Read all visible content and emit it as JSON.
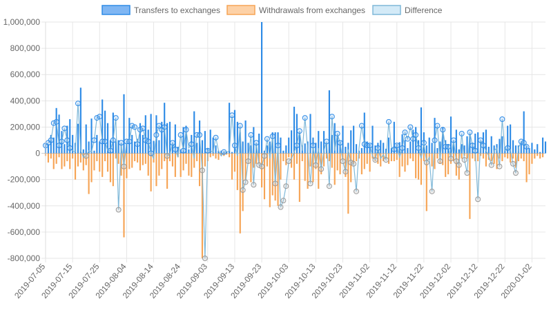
{
  "chart_data": {
    "type": "bar",
    "title": "",
    "xlabel": "",
    "ylabel": "",
    "ylim": [
      -800000,
      1000000
    ],
    "y_ticks": [
      -800000,
      -600000,
      -400000,
      -200000,
      0,
      200000,
      400000,
      600000,
      800000,
      1000000
    ],
    "y_tick_labels": [
      "-800,000",
      "-600,000",
      "-400,000",
      "-200,000",
      "0",
      "200,000",
      "400,000",
      "600,000",
      "800,000",
      "1,000,000"
    ],
    "x_tick_labels": [
      "2019-07-05",
      "2019-07-15",
      "2019-07-25",
      "2019-08-04",
      "2019-08-14",
      "2019-08-24",
      "2019-09-03",
      "2019-09-13",
      "2019-09-23",
      "2019-10-03",
      "2019-10-13",
      "2019-10-23",
      "2019-11-02",
      "2019-11-12",
      "2019-11-22",
      "2019-12-02",
      "2019-12-12",
      "2019-12-22",
      "2020-01-02"
    ],
    "grid": true,
    "legend_position": "top",
    "colors": {
      "transfers_fill": "#7fb6f3",
      "transfers_stroke": "#2e8be6",
      "withdrawals_fill": "#fdd1a6",
      "withdrawals_stroke": "#f6a455",
      "difference_fill": "#d3eaf7",
      "difference_stroke": "#7fb8d8",
      "grid": "#e6e6e6"
    },
    "series": [
      {
        "name": "Transfers to exchanges",
        "kind": "bar",
        "values": [
          80000,
          70000,
          140000,
          120000,
          345000,
          295000,
          170000,
          70000,
          210000,
          260000,
          140000,
          80000,
          225000,
          500000,
          30000,
          220000,
          90000,
          265000,
          20000,
          140000,
          90000,
          410000,
          325000,
          230000,
          100000,
          310000,
          90000,
          100000,
          80000,
          450000,
          70000,
          270000,
          140000,
          90000,
          110000,
          230000,
          140000,
          290000,
          180000,
          300000,
          95000,
          290000,
          100000,
          240000,
          385000,
          230000,
          240000,
          80000,
          220000,
          50000,
          30000,
          200000,
          210000,
          30000,
          140000,
          320000,
          80000,
          250000,
          100000,
          170000,
          40000,
          180000,
          120000,
          60000,
          20000,
          20000,
          15000,
          10000,
          385000,
          10000,
          330000,
          240000,
          160000,
          90000,
          250000,
          80000,
          60000,
          200000,
          80000,
          150000,
          1000000,
          20000,
          60000,
          90000,
          160000,
          160000,
          160000,
          120000,
          20000,
          60000,
          120000,
          175000,
          355000,
          300000,
          160000,
          60000,
          75000,
          90000,
          300000,
          120000,
          80000,
          170000,
          90000,
          170000,
          75000,
          480000,
          140000,
          230000,
          130000,
          90000,
          210000,
          50000,
          80000,
          175000,
          210000,
          70000,
          20000,
          40000,
          310000,
          90000,
          70000,
          210000,
          60000,
          80000,
          100000,
          80000,
          35000,
          120000,
          40000,
          240000,
          70000,
          85000,
          145000,
          100000,
          40000,
          90000,
          180000,
          200000,
          100000,
          350000,
          160000,
          60000,
          120000,
          80000,
          270000,
          40000,
          90000,
          200000,
          100000,
          70000,
          280000,
          100000,
          180000,
          30000,
          70000,
          60000,
          130000,
          140000,
          80000,
          150000,
          160000,
          90000,
          160000,
          180000,
          50000,
          130000,
          60000,
          70000,
          110000,
          130000,
          50000,
          210000,
          220000,
          100000,
          60000,
          60000,
          70000,
          320000,
          60000,
          40000,
          80000,
          30000,
          70000,
          10000,
          120000,
          90000
        ],
        "start": "2019-07-05"
      },
      {
        "name": "Withdrawals from exchanges",
        "kind": "bar",
        "values": [
          -20000,
          -70000,
          -40000,
          -120000,
          -80000,
          -30000,
          -120000,
          -100000,
          -60000,
          -120000,
          -40000,
          -200000,
          -100000,
          -70000,
          -130000,
          -90000,
          -310000,
          -220000,
          -130000,
          -60000,
          -140000,
          -180000,
          -60000,
          -140000,
          -220000,
          -250000,
          -40000,
          -80000,
          -170000,
          -640000,
          -190000,
          -120000,
          -110000,
          -60000,
          -70000,
          -130000,
          -90000,
          -80000,
          -170000,
          -290000,
          -70000,
          -250000,
          -170000,
          -120000,
          -60000,
          -270000,
          -60000,
          -100000,
          -180000,
          -30000,
          -180000,
          -130000,
          -80000,
          -170000,
          -180000,
          -110000,
          -60000,
          -250000,
          -800000,
          -100000,
          -60000,
          -30000,
          -20000,
          -40000,
          -50000,
          -20000,
          -20000,
          -10000,
          -30000,
          -200000,
          -140000,
          -280000,
          -610000,
          -440000,
          -200000,
          -80000,
          -220000,
          -110000,
          -80000,
          -80000,
          -260000,
          -350000,
          -100000,
          -410000,
          -320000,
          -360000,
          -400000,
          -200000,
          -60000,
          -90000,
          -30000,
          -110000,
          -200000,
          -80000,
          -370000,
          -60000,
          -210000,
          -270000,
          -100000,
          -220000,
          -120000,
          -270000,
          -160000,
          -100000,
          -40000,
          -60000,
          -110000,
          -240000,
          -130000,
          -160000,
          -60000,
          -180000,
          -460000,
          -220000,
          -80000,
          -60000,
          -40000,
          -160000,
          -120000,
          -80000,
          -140000,
          -40000,
          -60000,
          -80000,
          -100000,
          -60000,
          -40000,
          -80000,
          -60000,
          -60000,
          -50000,
          -180000,
          -100000,
          -140000,
          -90000,
          -40000,
          -60000,
          -190000,
          -200000,
          -240000,
          -60000,
          -440000,
          -50000,
          -100000,
          -120000,
          -40000,
          -80000,
          -90000,
          -180000,
          -160000,
          -80000,
          -60000,
          -170000,
          -200000,
          -40000,
          -20000,
          -40000,
          -500000,
          -40000,
          -60000,
          -60000,
          -20000,
          -40000,
          -100000,
          -50000,
          -60000,
          -80000,
          -120000,
          -40000,
          -60000,
          -30000,
          -40000,
          -70000,
          -40000,
          -110000,
          -60000,
          -40000,
          -60000,
          -220000,
          -160000,
          -80000,
          -40000,
          -20000,
          -40000,
          -30000
        ],
        "start": "2019-07-05"
      },
      {
        "name": "Difference",
        "kind": "line",
        "values": [
          60000,
          80000,
          100000,
          230000,
          240000,
          60000,
          90000,
          190000,
          100000,
          40000,
          20000,
          10000,
          380000,
          20000,
          -30000,
          -20000,
          20000,
          10000,
          100000,
          270000,
          280000,
          90000,
          90000,
          20000,
          20000,
          100000,
          270000,
          -430000,
          80000,
          -100000,
          90000,
          90000,
          210000,
          200000,
          70000,
          180000,
          190000,
          100000,
          90000,
          0,
          -40000,
          140000,
          210000,
          180000,
          200000,
          -20000,
          -10000,
          80000,
          30000,
          -30000,
          140000,
          20000,
          180000,
          40000,
          70000,
          -40000,
          140000,
          140000,
          -130000,
          -800000,
          20000,
          20000,
          10000,
          120000,
          20000,
          -20000,
          10000,
          10000,
          20000,
          290000,
          60000,
          -20000,
          210000,
          -280000,
          -220000,
          -60000,
          140000,
          -240000,
          80000,
          -90000,
          -100000,
          -20000,
          110000,
          -40000,
          130000,
          -230000,
          60000,
          -410000,
          -360000,
          -250000,
          -60000,
          -40000,
          10000,
          60000,
          170000,
          20000,
          270000,
          30000,
          -230000,
          60000,
          -90000,
          40000,
          -120000,
          20000,
          90000,
          -250000,
          280000,
          20000,
          150000,
          80000,
          -60000,
          -140000,
          30000,
          -70000,
          -80000,
          -290000,
          40000,
          210000,
          70000,
          60000,
          60000,
          -20000,
          -50000,
          40000,
          -40000,
          -10000,
          -50000,
          240000,
          40000,
          30000,
          60000,
          -30000,
          40000,
          160000,
          110000,
          200000,
          110000,
          140000,
          40000,
          -40000,
          80000,
          -70000,
          -30000,
          -290000,
          100000,
          210000,
          -60000,
          180000,
          50000,
          50000,
          -40000,
          100000,
          -60000,
          -90000,
          150000,
          -50000,
          -150000,
          160000,
          60000,
          20000,
          -350000,
          100000,
          60000,
          20000,
          -20000,
          -90000,
          20000,
          40000,
          -100000,
          260000,
          20000,
          40000,
          30000,
          -80000,
          -150000,
          40000,
          90000,
          80000,
          50000
        ]
      }
    ]
  }
}
